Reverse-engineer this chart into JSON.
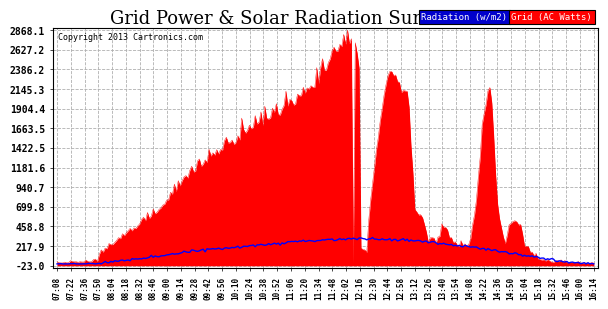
{
  "title": "Grid Power & Solar Radiation Sun Dec 1 16:16",
  "copyright": "Copyright 2013 Cartronics.com",
  "legend_radiation": "Radiation (w/m2)",
  "legend_grid": "Grid (AC Watts)",
  "yticks": [
    2868.1,
    2627.2,
    2386.2,
    2145.3,
    1904.4,
    1663.5,
    1422.5,
    1181.6,
    940.7,
    699.8,
    458.8,
    217.9,
    -23.0
  ],
  "ymin": -23.0,
  "ymax": 2868.1,
  "background_color": "#ffffff",
  "plot_bg_color": "#ffffff",
  "grid_color": "#b0b0b0",
  "fill_color": "#ff0000",
  "radiation_color": "#0000ff",
  "title_fontsize": 13,
  "xtick_labels": [
    "07:08",
    "07:22",
    "07:36",
    "07:50",
    "08:04",
    "08:18",
    "08:32",
    "08:46",
    "09:00",
    "09:14",
    "09:28",
    "09:42",
    "09:56",
    "10:10",
    "10:24",
    "10:38",
    "10:52",
    "11:06",
    "11:20",
    "11:34",
    "11:48",
    "12:02",
    "12:16",
    "12:30",
    "12:44",
    "12:58",
    "13:12",
    "13:26",
    "13:40",
    "13:54",
    "14:08",
    "14:22",
    "14:36",
    "14:50",
    "15:04",
    "15:18",
    "15:32",
    "15:46",
    "16:00",
    "16:14"
  ]
}
